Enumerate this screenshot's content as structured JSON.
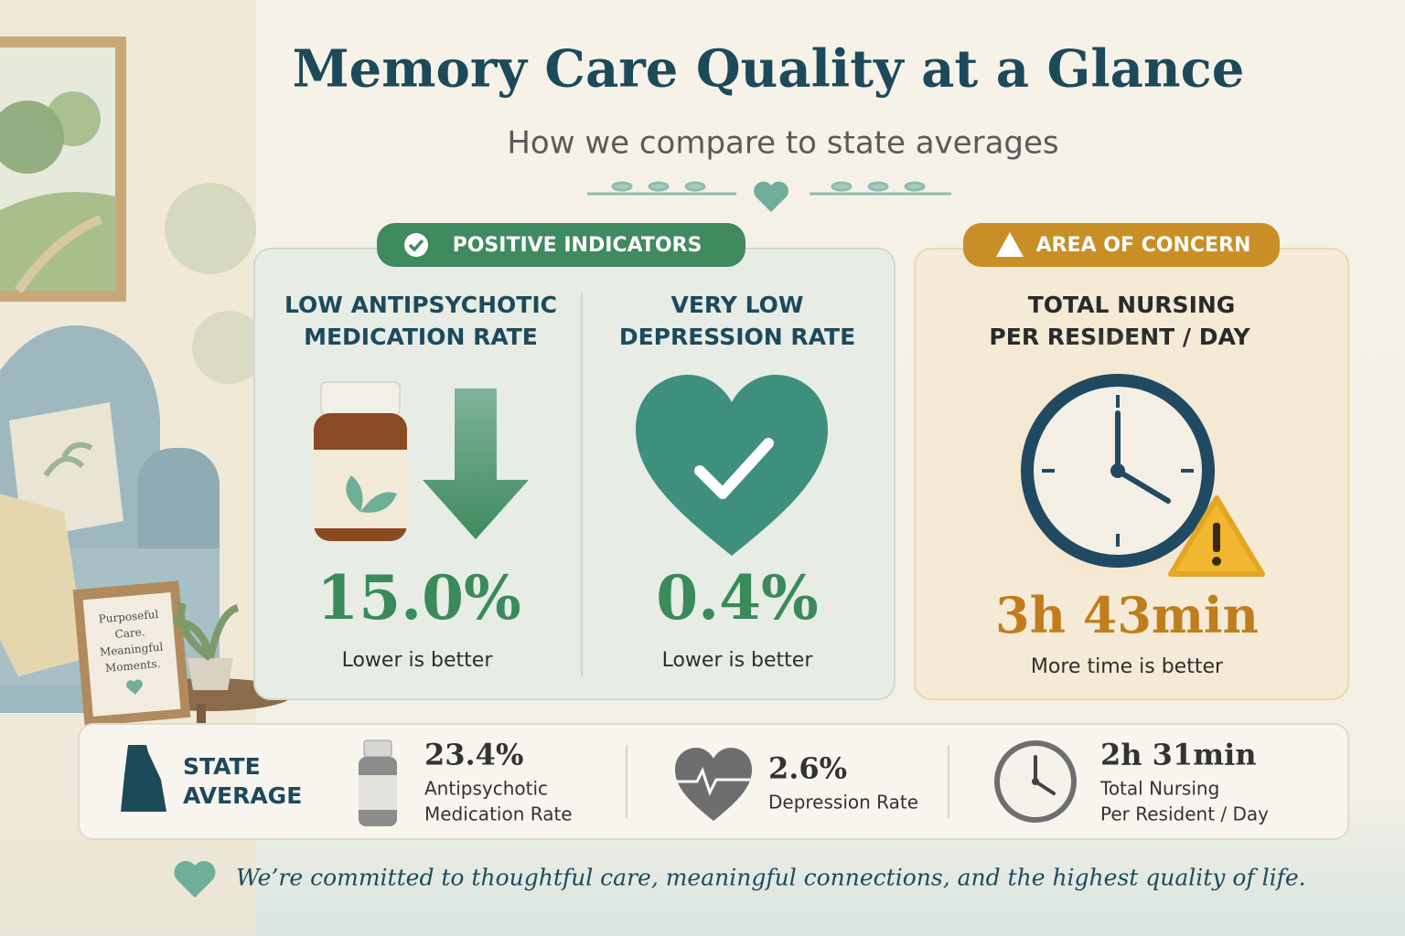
{
  "header": {
    "title": "Memory Care Quality at a Glance",
    "subtitle": "How we compare to state averages"
  },
  "positive": {
    "badge": "POSITIVE INDICATORS",
    "metrics": [
      {
        "title_lines": [
          "LOW ANTIPSYCHOTIC",
          "MEDICATION RATE"
        ],
        "value": "15.0%",
        "note": "Lower is better"
      },
      {
        "title_lines": [
          "VERY LOW",
          "DEPRESSION RATE"
        ],
        "value": "0.4%",
        "note": "Lower is better"
      }
    ]
  },
  "concern": {
    "badge": "AREA OF CONCERN",
    "title_lines": [
      "TOTAL NURSING",
      "PER RESIDENT / DAY"
    ],
    "value": "3h 43min",
    "note": "More time is better"
  },
  "state_average": {
    "label_lines": [
      "STATE",
      "AVERAGE"
    ],
    "items": [
      {
        "value": "23.4%",
        "label_lines": [
          "Antipsychotic",
          "Medication Rate"
        ]
      },
      {
        "value": "2.6%",
        "label_lines": [
          "Depression Rate"
        ]
      },
      {
        "value": "2h 31min",
        "label_lines": [
          "Total Nursing",
          "Per Resident / Day"
        ]
      }
    ]
  },
  "decor": {
    "sign_lines": [
      "Purposeful",
      "Care.",
      "Meaningful",
      "Moments."
    ]
  },
  "footer": {
    "text": "We’re committed to thoughtful care, meaningful connections, and the highest quality of life."
  }
}
